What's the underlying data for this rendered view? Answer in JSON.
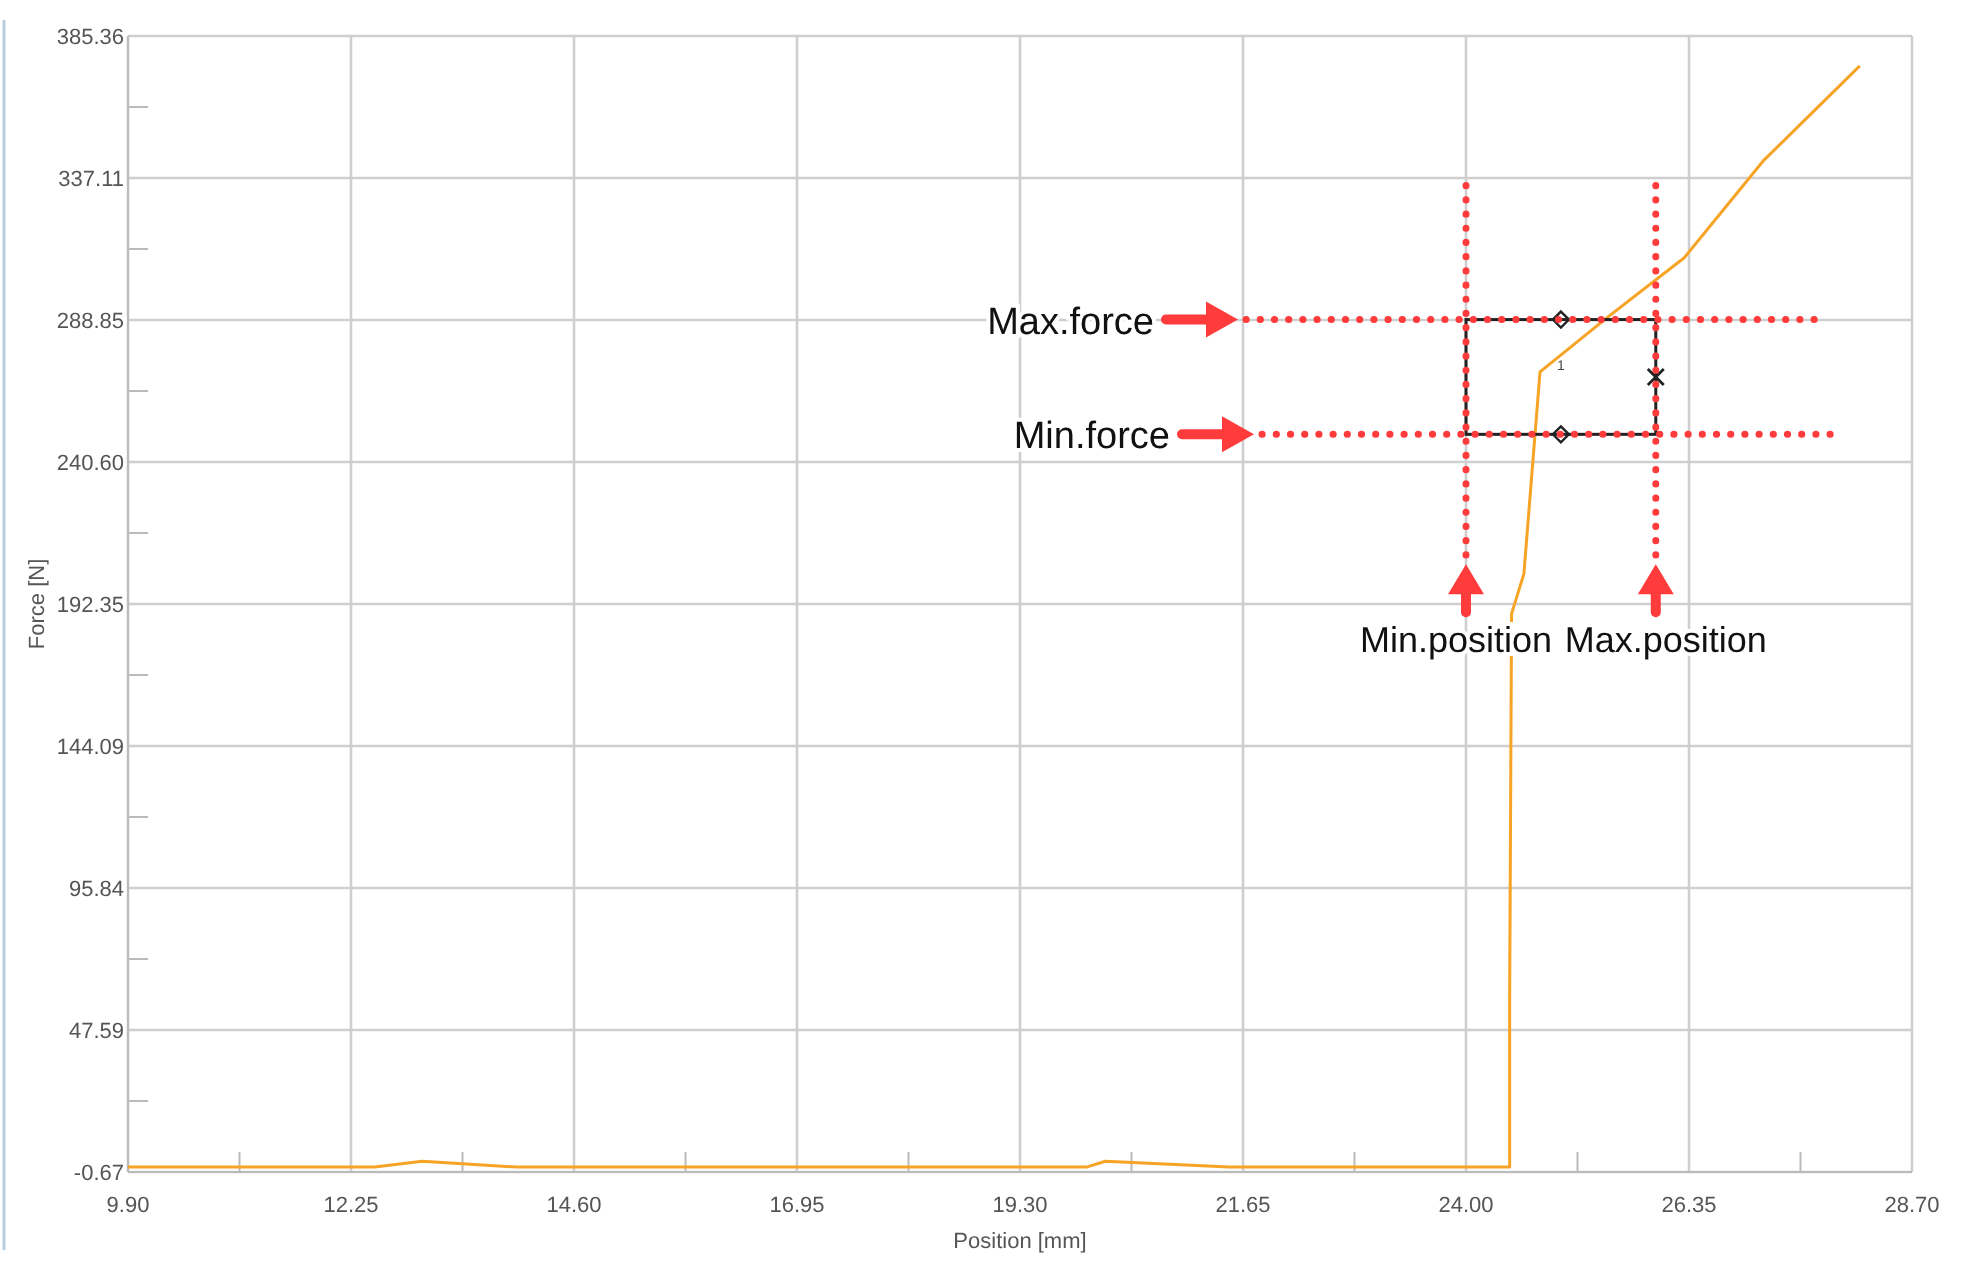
{
  "chart_data": {
    "type": "line",
    "xlabel": "Position [mm]",
    "ylabel": "Force [N]",
    "xlim": [
      9.9,
      28.7
    ],
    "xticks": [
      {
        "value": 9.9,
        "label": "9.90"
      },
      {
        "value": 11.075,
        "label": null
      },
      {
        "value": 12.25,
        "label": "12.25"
      },
      {
        "value": 13.425,
        "label": null
      },
      {
        "value": 14.6,
        "label": "14.60"
      },
      {
        "value": 15.775,
        "label": null
      },
      {
        "value": 16.95,
        "label": "16.95"
      },
      {
        "value": 18.125,
        "label": null
      },
      {
        "value": 19.3,
        "label": "19.30"
      },
      {
        "value": 20.475,
        "label": null
      },
      {
        "value": 21.65,
        "label": "21.65"
      },
      {
        "value": 22.825,
        "label": null
      },
      {
        "value": 24,
        "label": "24.00"
      },
      {
        "value": 25.175,
        "label": null
      },
      {
        "value": 26.35,
        "label": "26.35"
      },
      {
        "value": 27.525,
        "label": null
      },
      {
        "value": 28.7,
        "label": "28.70"
      }
    ],
    "ylim": [
      -0.67,
      385.36
    ],
    "yticks": [
      -0.67,
      {
        "value": 23.46,
        "label": null
      },
      47.59,
      {
        "value": 71.715,
        "label": null
      },
      95.84,
      {
        "value": 119.965,
        "label": null
      },
      144.09,
      {
        "value": 168.22,
        "label": null
      },
      192.35,
      {
        "value": 216.475,
        "label": null
      },
      {
        "value": 240.6,
        "label": "240.60"
      },
      {
        "value": 264.725,
        "label": null
      },
      288.85,
      {
        "value": 312.98,
        "label": null
      },
      337.11,
      {
        "value": 361.235,
        "label": null
      },
      385.36
    ],
    "grid": true,
    "marker": "none",
    "line_style": "solid",
    "series": [
      {
        "color": "#f7a325",
        "x": [
          9.9,
          11,
          12.5,
          13,
          14,
          15.5,
          17,
          18.5,
          20,
          20.2,
          21.5,
          23,
          24.46,
          24.46,
          24.48,
          24.61,
          24.78,
          25.5,
          26.3,
          27.14,
          28.15
        ],
        "values": [
          1,
          1,
          1,
          3,
          1,
          1,
          1,
          1,
          1,
          3,
          1,
          1,
          1,
          57.8,
          189,
          202.6,
          271.2,
          290,
          310,
          343.2,
          375.2
        ]
      },
      {
        "type": "scatter",
        "marker": "diamond",
        "color": "#222222",
        "x": [
          25,
          25
        ],
        "values": [
          289,
          250
        ]
      },
      {
        "type": "scatter",
        "marker": "cross",
        "color": "#222222",
        "x": [
          26
        ],
        "values": [
          269.5
        ]
      }
    ],
    "ref_lines": [
      {
        "axis": "y",
        "value": 289,
        "label": "Max.force",
        "color": "#ff3b3b",
        "line_style": "dotted"
      },
      {
        "axis": "y",
        "value": 250,
        "label": "Min.force",
        "color": "#ff3b3b",
        "line_style": "dotted"
      },
      {
        "axis": "x",
        "value": 24,
        "label": "Min.position",
        "color": "#ff3b3b",
        "line_style": "dotted"
      },
      {
        "axis": "x",
        "value": 26,
        "label": "Max.position",
        "color": "#ff3b3b",
        "line_style": "dotted"
      }
    ],
    "annotations": [
      {
        "text": "1",
        "x": 25,
        "y": 272
      }
    ]
  }
}
